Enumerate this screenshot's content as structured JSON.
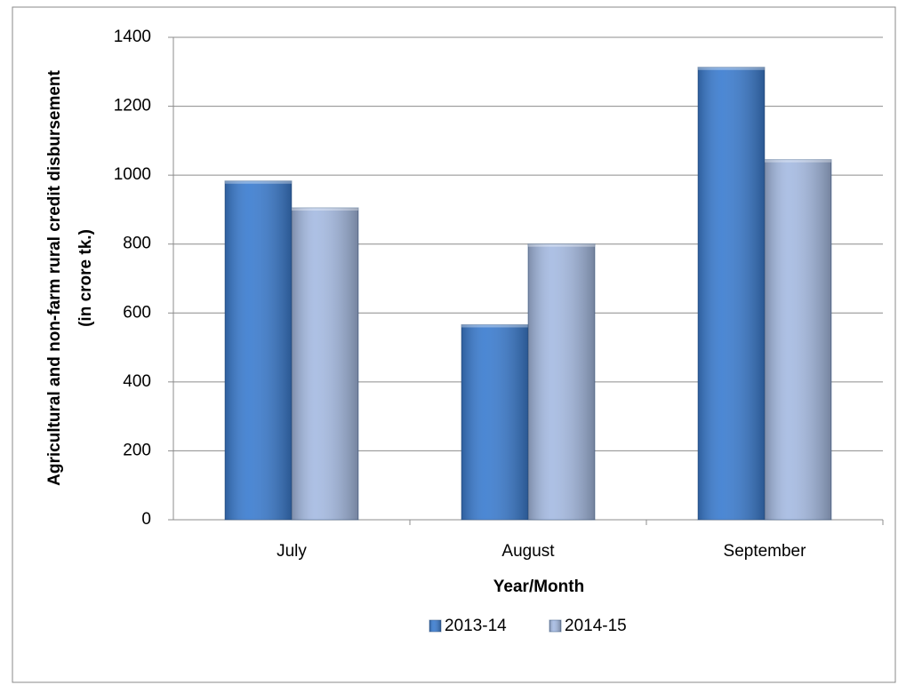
{
  "chart_data": {
    "type": "bar",
    "xlabel": "Year/Month",
    "ylabel": [
      "Agricultural and non-farm rural credit disbursement",
      "(in crore tk.)"
    ],
    "categories": [
      "July",
      "August",
      "September"
    ],
    "series": [
      {
        "name": "2013-14",
        "color": "#3c7dd0",
        "values": [
          983,
          566,
          1313
        ]
      },
      {
        "name": "2014-15",
        "color": "#a6bbe2",
        "values": [
          905,
          800,
          1045
        ]
      }
    ],
    "ylim": [
      0,
      1400
    ],
    "yticks": [
      0,
      200,
      400,
      600,
      800,
      1000,
      1200,
      1400
    ],
    "grid": true,
    "legend": "bottom"
  }
}
